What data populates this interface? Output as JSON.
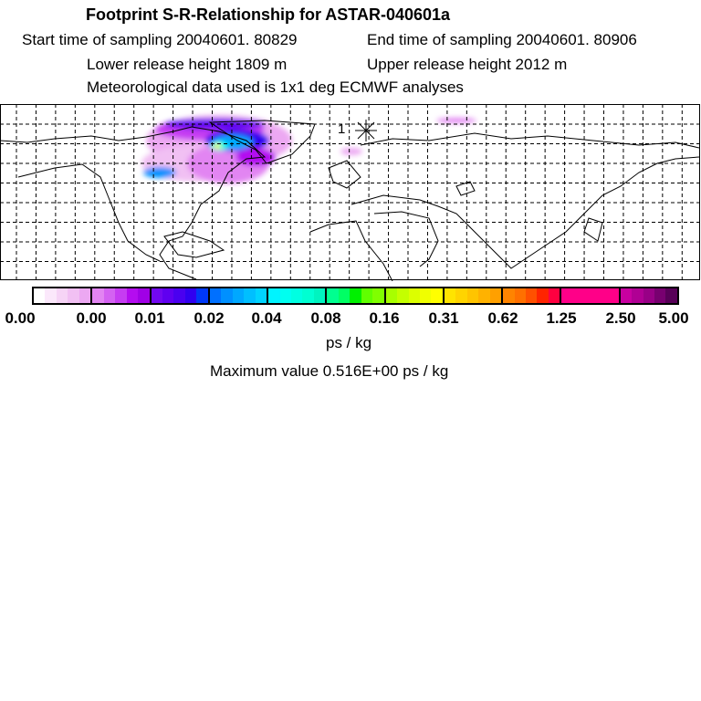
{
  "header": {
    "title": "Footprint S-R-Relationship for ASTAR-040601a",
    "start_time": "Start time of sampling 20040601. 80829",
    "end_time": "End time of sampling 20040601. 80906",
    "lower_height": "Lower release height 1809 m",
    "upper_height": "Upper release height 2012 m",
    "met_data": "Meteorological data used is 1x1 deg ECMWF analyses"
  },
  "map": {
    "release_label": "1",
    "grid": "dashed lat/lon grid",
    "release-marker-icon": "star-icon"
  },
  "colorbar": {
    "labels": [
      "0.00",
      "0.00",
      "0.01",
      "0.02",
      "0.04",
      "0.08",
      "0.16",
      "0.31",
      "0.62",
      "1.25",
      "2.50",
      "5.00"
    ],
    "segments": [
      [
        "#ffffff",
        "#fbe8fb",
        "#f6d4f6",
        "#f1c0f3",
        "#eca8f2"
      ],
      [
        "#e285f2",
        "#d462f2",
        "#c63cf2",
        "#b40cf0",
        "#a000e6"
      ],
      [
        "#7208f0",
        "#6000f0",
        "#4a00f0",
        "#3000f0",
        "#0038f8"
      ],
      [
        "#0070ff",
        "#0090ff",
        "#00a8ff",
        "#00bfff",
        "#00d4ff"
      ],
      [
        "#00f4ff",
        "#00fff0",
        "#00ffe2",
        "#00ffd2",
        "#00f4c0"
      ],
      [
        "#00ff90",
        "#00ff64",
        "#00f000",
        "#60ff00",
        "#80ff00"
      ],
      [
        "#a8ff00",
        "#c4ff00",
        "#dcff00",
        "#f0ff00",
        "#ffff00"
      ],
      [
        "#ffe400",
        "#ffd400",
        "#ffc400",
        "#ffb200",
        "#ffa000"
      ],
      [
        "#ff8400",
        "#ff7000",
        "#ff5000",
        "#ff2400",
        "#ff0040"
      ],
      [
        "#ff0088",
        "#ff0088",
        "#ff0088",
        "#ff0088",
        "#ff0088"
      ],
      [
        "#c800a0",
        "#b00094",
        "#980086",
        "#780070",
        "#580058"
      ]
    ],
    "unit": "ps / kg",
    "max_value": "Maximum value  0.516E+00 ps / kg"
  }
}
